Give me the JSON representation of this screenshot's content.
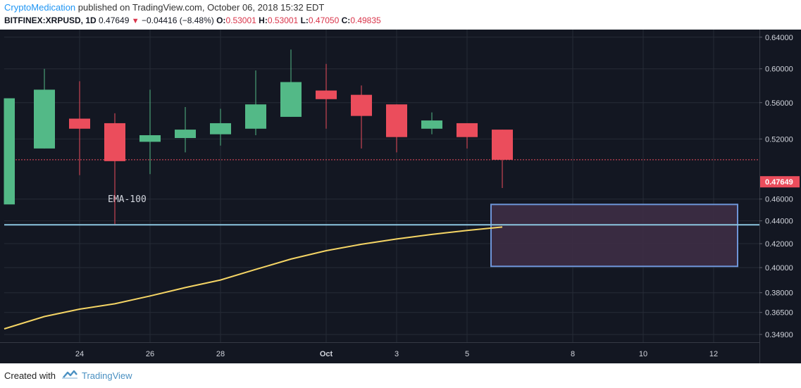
{
  "header": {
    "author": "CryptoMedication",
    "published": "published on TradingView.com, October 06, 2018 15:32 EDT",
    "symbol": "BITFINEX:XRPUSD, 1D",
    "last": "0.47649",
    "change": "−0.04416 (−8.48%)",
    "o_label": "O:",
    "o": "0.53001",
    "h_label": "H:",
    "h": "0.53001",
    "l_label": "L:",
    "l": "0.47050",
    "c_label": "C:",
    "c": "0.49835"
  },
  "footer": {
    "created_with": "Created with",
    "brand": "TradingView"
  },
  "colors": {
    "background": "#131722",
    "grid": "#262b36",
    "up": "#53b987",
    "down": "#eb4d5c",
    "ema": "#f5d565",
    "support": "#8cc6e0",
    "zone_fill": "#3e2e45",
    "zone_border": "#6e95d8",
    "axis_text": "#d1d4dc",
    "price_label_bg": "#eb4d5c"
  },
  "chart_data": {
    "type": "candlestick",
    "x_ticks": [
      "24",
      "26",
      "28",
      "Oct",
      "3",
      "5",
      "8",
      "10",
      "12"
    ],
    "y_ticks": [
      "0.64000",
      "0.60000",
      "0.56000",
      "0.52000",
      "0.46000",
      "0.44000",
      "0.42000",
      "0.40000",
      "0.38000",
      "0.36500",
      "0.34900"
    ],
    "y_scale": "log",
    "ylim": [
      0.3435,
      0.65
    ],
    "current_price_label": "0.47649",
    "candles": [
      {
        "date": "2018-09-22",
        "open": 0.455,
        "high": 0.565,
        "low": 0.455,
        "close": 0.565
      },
      {
        "date": "2018-09-23",
        "open": 0.51,
        "high": 0.6,
        "low": 0.51,
        "close": 0.575
      },
      {
        "date": "2018-09-24",
        "open": 0.542,
        "high": 0.585,
        "low": 0.483,
        "close": 0.531
      },
      {
        "date": "2018-09-25",
        "open": 0.537,
        "high": 0.548,
        "low": 0.437,
        "close": 0.497
      },
      {
        "date": "2018-09-26",
        "open": 0.517,
        "high": 0.575,
        "low": 0.484,
        "close": 0.524
      },
      {
        "date": "2018-09-27",
        "open": 0.521,
        "high": 0.555,
        "low": 0.506,
        "close": 0.53
      },
      {
        "date": "2018-09-28",
        "open": 0.525,
        "high": 0.553,
        "low": 0.513,
        "close": 0.537
      },
      {
        "date": "2018-09-29",
        "open": 0.531,
        "high": 0.598,
        "low": 0.524,
        "close": 0.558
      },
      {
        "date": "2018-09-30",
        "open": 0.544,
        "high": 0.624,
        "low": 0.544,
        "close": 0.584
      },
      {
        "date": "2018-10-01",
        "open": 0.574,
        "high": 0.606,
        "low": 0.531,
        "close": 0.564
      },
      {
        "date": "2018-10-02",
        "open": 0.569,
        "high": 0.58,
        "low": 0.51,
        "close": 0.545
      },
      {
        "date": "2018-10-03",
        "open": 0.558,
        "high": 0.558,
        "low": 0.506,
        "close": 0.522
      },
      {
        "date": "2018-10-04",
        "open": 0.531,
        "high": 0.549,
        "low": 0.525,
        "close": 0.54
      },
      {
        "date": "2018-10-05",
        "open": 0.537,
        "high": 0.537,
        "low": 0.51,
        "close": 0.522
      },
      {
        "date": "2018-10-06",
        "open": 0.53,
        "high": 0.53,
        "low": 0.4705,
        "close": 0.4984
      }
    ],
    "ema": {
      "label": "EMA-100",
      "points": [
        {
          "date": "2018-09-21",
          "value": 0.353
        },
        {
          "date": "2018-09-23",
          "value": 0.362
        },
        {
          "date": "2018-09-24",
          "value": 0.3675
        },
        {
          "date": "2018-09-25",
          "value": 0.3715
        },
        {
          "date": "2018-09-26",
          "value": 0.3775
        },
        {
          "date": "2018-09-27",
          "value": 0.384
        },
        {
          "date": "2018-09-28",
          "value": 0.39
        },
        {
          "date": "2018-09-29",
          "value": 0.3985
        },
        {
          "date": "2018-09-30",
          "value": 0.407
        },
        {
          "date": "2018-10-01",
          "value": 0.414
        },
        {
          "date": "2018-10-02",
          "value": 0.4195
        },
        {
          "date": "2018-10-03",
          "value": 0.424
        },
        {
          "date": "2018-10-04",
          "value": 0.428
        },
        {
          "date": "2018-10-05",
          "value": 0.4315
        },
        {
          "date": "2018-10-06",
          "value": 0.4345
        }
      ]
    },
    "support_line": 0.4365,
    "reference_line": 0.4984,
    "zone": {
      "from_date": "2018-10-06",
      "to_date": "2018-10-13",
      "low": 0.401,
      "high": 0.455
    }
  }
}
